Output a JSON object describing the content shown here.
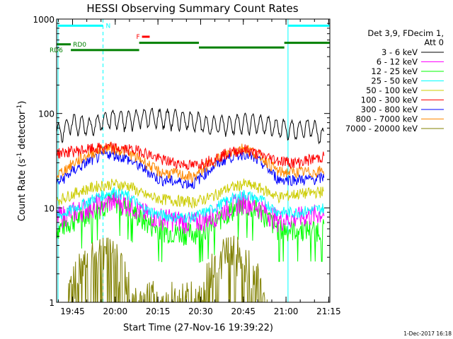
{
  "chart_data": {
    "type": "line",
    "title": "HESSI Observing Summary Count Rates",
    "xlabel": "Start Time (27-Nov-16 19:39:22)",
    "ylabel": "Count Rate (s",
    "ylabel_sup": "-1",
    "ylabel_mid": " detector",
    "ylabel_end": ")",
    "y_scale": "log",
    "ylim": [
      1,
      1000
    ],
    "xlim_minutes": [
      0,
      96
    ],
    "x_tick_labels": [
      "19:45",
      "20:00",
      "20:15",
      "20:30",
      "20:45",
      "21:00",
      "21:15"
    ],
    "x_ticks_min": [
      5.6,
      20.6,
      35.6,
      50.6,
      65.6,
      80.6,
      95.6
    ],
    "y_tick_labels": [
      "1",
      "10",
      "100",
      "1000"
    ],
    "y_ticks": [
      1,
      10,
      100,
      1000
    ],
    "legend_header": [
      "Det 3,9, FDecim 1,",
      "Att 0"
    ],
    "series": [
      {
        "name": "3 - 6 keV",
        "color": "#000000",
        "x": [
          0,
          6,
          12,
          18,
          24,
          30,
          36,
          42,
          48,
          54,
          60,
          66,
          72,
          78,
          84,
          90,
          94
        ],
        "y": [
          62,
          80,
          72,
          90,
          85,
          92,
          90,
          88,
          85,
          75,
          78,
          80,
          78,
          72,
          68,
          72,
          55
        ]
      },
      {
        "name": "6 - 12 keV",
        "color": "#ff00ff",
        "x": [
          0,
          8,
          14,
          20,
          26,
          30,
          36,
          42,
          48,
          54,
          60,
          66,
          72,
          78,
          84,
          90,
          94
        ],
        "y": [
          8,
          9.5,
          11,
          12,
          11,
          9,
          8,
          7.5,
          7,
          8,
          10,
          12,
          10,
          7.5,
          8,
          8.5,
          9
        ]
      },
      {
        "name": "12 - 25 keV",
        "color": "#00ff00",
        "x": [
          0,
          8,
          14,
          20,
          26,
          30,
          36,
          42,
          48,
          54,
          60,
          66,
          72,
          78,
          84,
          90,
          94
        ],
        "y": [
          6,
          8,
          10,
          12,
          10,
          7.5,
          6,
          5.5,
          5.5,
          6.5,
          9,
          11,
          9,
          6,
          6,
          6,
          6
        ]
      },
      {
        "name": "25 - 50 keV",
        "color": "#00ffff",
        "x": [
          0,
          8,
          14,
          20,
          26,
          30,
          36,
          42,
          48,
          54,
          60,
          66,
          72,
          78,
          84,
          90,
          94
        ],
        "y": [
          8,
          10.5,
          13,
          15,
          13,
          10,
          8.5,
          8,
          8,
          9.5,
          12,
          14,
          12,
          9,
          9,
          9.5,
          10
        ]
      },
      {
        "name": "50 - 100 keV",
        "color": "#cccc00",
        "x": [
          0,
          8,
          14,
          20,
          26,
          30,
          36,
          42,
          48,
          54,
          60,
          66,
          72,
          78,
          84,
          90,
          94
        ],
        "y": [
          12,
          15,
          17,
          18,
          17,
          14,
          12.5,
          12,
          11.5,
          13,
          16,
          18,
          16,
          13,
          14,
          14.5,
          15
        ]
      },
      {
        "name": "100 - 300 keV",
        "color": "#ff0000",
        "x": [
          0,
          6,
          12,
          18,
          24,
          30,
          36,
          42,
          48,
          54,
          60,
          66,
          72,
          78,
          84,
          90,
          94
        ],
        "y": [
          38,
          40,
          42,
          44,
          42,
          40,
          33,
          30,
          28,
          32,
          38,
          42,
          36,
          32,
          30,
          33,
          35
        ]
      },
      {
        "name": "300 - 800 keV",
        "color": "#0000ff",
        "x": [
          0,
          6,
          12,
          18,
          24,
          30,
          36,
          42,
          48,
          54,
          60,
          66,
          72,
          78,
          84,
          90,
          94
        ],
        "y": [
          18,
          25,
          32,
          38,
          34,
          27,
          20,
          19,
          18,
          26,
          34,
          38,
          30,
          20,
          20,
          20,
          21
        ]
      },
      {
        "name": "800 - 7000 keV",
        "color": "#ff8800",
        "x": [
          0,
          6,
          12,
          18,
          24,
          30,
          36,
          42,
          48,
          54,
          60,
          66,
          72,
          78,
          84,
          90,
          94
        ],
        "y": [
          22,
          30,
          38,
          44,
          40,
          32,
          24,
          23,
          21,
          30,
          38,
          44,
          35,
          24,
          24,
          24,
          25
        ]
      },
      {
        "name": "7000 - 20000 keV",
        "color": "#808000",
        "x": [
          4,
          8,
          12,
          16,
          20,
          24,
          27,
          50,
          54,
          58,
          62,
          66,
          70,
          74
        ],
        "y": [
          1.2,
          2.5,
          3.5,
          4.0,
          3.5,
          2.0,
          1.2,
          1.2,
          2.5,
          3.5,
          4.0,
          3.0,
          2.0,
          1.2
        ]
      }
    ],
    "vlines_solid_min": [
      0.5,
      81.3
    ],
    "vlines_dashed_min": [
      16.3,
      96.5
    ],
    "flags": [
      {
        "label": "N",
        "color": "#00ffff",
        "y": 850,
        "segments": [
          [
            0.5,
            16.3
          ],
          [
            81.3,
            96.5
          ]
        ]
      },
      {
        "label": "F",
        "color": "#ff0000",
        "y": 650,
        "segments": [
          [
            30,
            32.7
          ]
        ]
      },
      {
        "label": "RD0",
        "color": "#008000",
        "y": 540,
        "segments": [
          [
            0,
            5
          ]
        ]
      },
      {
        "label": "RD6",
        "color": "#008000",
        "y": 470,
        "segments": [
          [
            5,
            29
          ]
        ]
      },
      {
        "label": "",
        "color": "#008000",
        "y": 560,
        "segments": [
          [
            29,
            50
          ],
          [
            80,
            96.5
          ]
        ]
      },
      {
        "label": "",
        "color": "#008000",
        "y": 500,
        "segments": [
          [
            50,
            80
          ]
        ]
      }
    ]
  },
  "footer_date": "1-Dec-2017 16:18"
}
